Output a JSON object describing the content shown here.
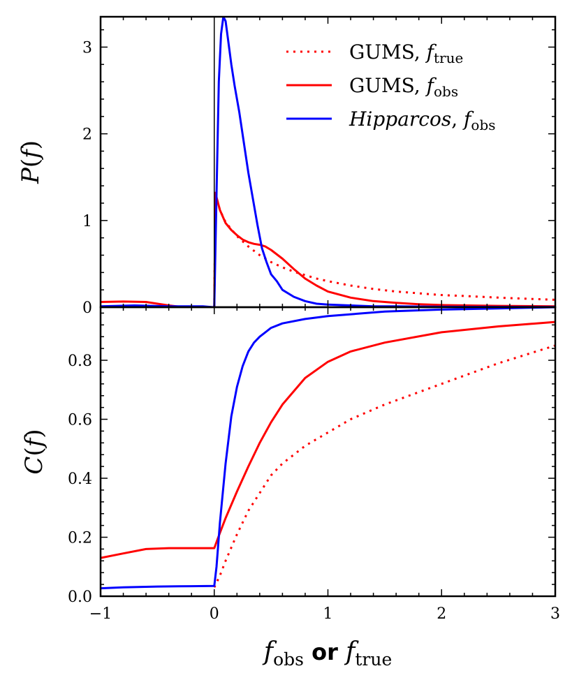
{
  "chart_data": [
    {
      "type": "line",
      "panel": "top",
      "ylabel_fn": "P",
      "ylabel_arg": "f",
      "xlim": [
        -1,
        3
      ],
      "ylim": [
        0,
        3.35
      ],
      "yticks": [
        0,
        1,
        2,
        3
      ],
      "ytick_labels": [
        "0",
        "1",
        "2",
        "3"
      ],
      "legend_position": "top-right",
      "legend": [
        {
          "series": "gums_true",
          "label": "GUMS, ",
          "sub": "true",
          "italic": false
        },
        {
          "series": "gums_obs",
          "label": "GUMS, ",
          "sub": "obs",
          "italic": false
        },
        {
          "series": "hip_obs",
          "label": "Hipparcos",
          "sub": "obs",
          "italic": true
        }
      ],
      "series": [
        {
          "key": "gums_true",
          "name": "GUMS, f_true",
          "color": "#ff0000",
          "dashed": true,
          "x": [
            0,
            0.01,
            0.03,
            0.05,
            0.1,
            0.15,
            0.2,
            0.3,
            0.4,
            0.5,
            0.6,
            0.7,
            0.8,
            0.9,
            1.0,
            1.2,
            1.4,
            1.6,
            1.8,
            2.0,
            2.2,
            2.5,
            2.8,
            3.0
          ],
          "y": [
            0,
            1.3,
            1.22,
            1.12,
            0.98,
            0.9,
            0.82,
            0.7,
            0.6,
            0.52,
            0.46,
            0.41,
            0.37,
            0.33,
            0.3,
            0.25,
            0.21,
            0.18,
            0.16,
            0.14,
            0.13,
            0.11,
            0.095,
            0.085
          ]
        },
        {
          "key": "gums_obs",
          "name": "GUMS, f_obs",
          "color": "#ff0000",
          "dashed": false,
          "x": [
            -1,
            -0.8,
            -0.6,
            -0.5,
            -0.4,
            -0.3,
            -0.25,
            -0.01,
            0,
            0.01,
            0.03,
            0.05,
            0.1,
            0.15,
            0.2,
            0.25,
            0.3,
            0.35,
            0.4,
            0.45,
            0.5,
            0.6,
            0.7,
            0.8,
            0.9,
            1.0,
            1.2,
            1.4,
            1.6,
            1.8,
            2.0,
            2.5,
            3.0
          ],
          "y": [
            0.06,
            0.065,
            0.06,
            0.04,
            0.02,
            0.005,
            0,
            0,
            0,
            1.32,
            1.22,
            1.12,
            0.97,
            0.89,
            0.83,
            0.78,
            0.75,
            0.73,
            0.72,
            0.7,
            0.66,
            0.56,
            0.44,
            0.33,
            0.25,
            0.18,
            0.11,
            0.07,
            0.05,
            0.035,
            0.025,
            0.015,
            0.01
          ]
        },
        {
          "key": "hip_obs",
          "name": "Hipparcos, f_obs",
          "color": "#0000ff",
          "dashed": false,
          "x": [
            -1,
            -0.7,
            -0.4,
            -0.1,
            -0.01,
            0,
            0.02,
            0.04,
            0.06,
            0.08,
            0.1,
            0.12,
            0.15,
            0.18,
            0.22,
            0.26,
            0.3,
            0.34,
            0.38,
            0.42,
            0.46,
            0.5,
            0.55,
            0.6,
            0.7,
            0.8,
            0.9,
            1.0,
            1.2,
            1.4,
            1.6,
            2.0,
            2.5,
            3.0
          ],
          "y": [
            0.01,
            0.02,
            0.01,
            0.01,
            0,
            0,
            1.3,
            2.6,
            3.15,
            3.35,
            3.3,
            3.1,
            2.8,
            2.55,
            2.25,
            1.9,
            1.55,
            1.25,
            0.95,
            0.68,
            0.52,
            0.38,
            0.3,
            0.2,
            0.12,
            0.07,
            0.04,
            0.03,
            0.02,
            0.01,
            0.01,
            0.005,
            0.003,
            0.002
          ]
        }
      ]
    },
    {
      "type": "line",
      "panel": "bottom",
      "ylabel_fn": "C",
      "ylabel_arg": "f",
      "xlabel": {
        "a": "f",
        "a_sub": "obs",
        "mid": " or ",
        "b": "f",
        "b_sub": "true"
      },
      "xlim": [
        -1,
        3
      ],
      "ylim": [
        0,
        0.98
      ],
      "yticks": [
        0,
        0.2,
        0.4,
        0.6,
        0.8
      ],
      "ytick_labels": [
        "0.0",
        "0.2",
        "0.4",
        "0.6",
        "0.8"
      ],
      "xticks": [
        -1,
        0,
        1,
        2,
        3
      ],
      "xtick_labels": [
        "−1",
        "0",
        "1",
        "2",
        "3"
      ],
      "series": [
        {
          "key": "gums_true",
          "name": "GUMS, f_true",
          "color": "#ff0000",
          "dashed": true,
          "x": [
            0,
            0.05,
            0.1,
            0.2,
            0.3,
            0.4,
            0.5,
            0.6,
            0.8,
            1.0,
            1.2,
            1.5,
            2.0,
            2.5,
            3.0
          ],
          "y": [
            0.03,
            0.07,
            0.12,
            0.21,
            0.29,
            0.35,
            0.41,
            0.45,
            0.51,
            0.555,
            0.6,
            0.65,
            0.72,
            0.79,
            0.85
          ]
        },
        {
          "key": "gums_obs",
          "name": "GUMS, f_obs",
          "color": "#ff0000",
          "dashed": false,
          "x": [
            -1,
            -0.8,
            -0.6,
            -0.4,
            -0.2,
            0,
            0.05,
            0.1,
            0.2,
            0.3,
            0.4,
            0.5,
            0.6,
            0.8,
            1.0,
            1.2,
            1.5,
            2.0,
            2.5,
            3.0
          ],
          "y": [
            0.13,
            0.145,
            0.16,
            0.163,
            0.163,
            0.163,
            0.215,
            0.265,
            0.355,
            0.44,
            0.52,
            0.59,
            0.65,
            0.74,
            0.795,
            0.83,
            0.86,
            0.895,
            0.915,
            0.93
          ]
        },
        {
          "key": "hip_obs",
          "name": "Hipparcos, f_obs",
          "color": "#0000ff",
          "dashed": false,
          "x": [
            -1,
            -0.8,
            -0.5,
            -0.2,
            0,
            0.02,
            0.05,
            0.1,
            0.15,
            0.2,
            0.25,
            0.3,
            0.35,
            0.4,
            0.5,
            0.6,
            0.8,
            1.0,
            1.5,
            2.0,
            2.5,
            3.0
          ],
          "y": [
            0.027,
            0.03,
            0.033,
            0.034,
            0.035,
            0.1,
            0.25,
            0.45,
            0.61,
            0.71,
            0.78,
            0.83,
            0.86,
            0.88,
            0.91,
            0.925,
            0.94,
            0.95,
            0.965,
            0.972,
            0.976,
            0.98
          ]
        }
      ]
    }
  ]
}
